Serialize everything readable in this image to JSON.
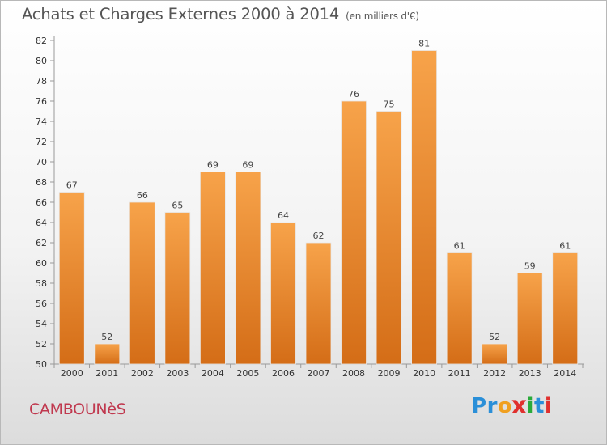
{
  "header": {
    "title": "Achats et Charges Externes 2000 à 2014",
    "unit": "(en milliers d'€)"
  },
  "footer": {
    "commune": "CAMBOUNèS",
    "logo_letters": [
      {
        "ch": "P",
        "color": "#2a8fd8"
      },
      {
        "ch": "r",
        "color": "#2a8fd8"
      },
      {
        "ch": "o",
        "color": "#f0a020"
      },
      {
        "ch": "x",
        "color": "#e0302e"
      },
      {
        "ch": "i",
        "color": "#2aaa3a"
      },
      {
        "ch": "t",
        "color": "#2a8fd8"
      },
      {
        "ch": "i",
        "color": "#e0302e"
      }
    ]
  },
  "chart_data": {
    "type": "bar",
    "title": "Achats et Charges Externes 2000 à 2014",
    "subtitle": "(en milliers d'€)",
    "xlabel": "",
    "ylabel": "",
    "categories": [
      "2000",
      "2001",
      "2002",
      "2003",
      "2004",
      "2005",
      "2006",
      "2007",
      "2008",
      "2009",
      "2010",
      "2011",
      "2012",
      "2013",
      "2014"
    ],
    "values": [
      67,
      52,
      66,
      65,
      69,
      69,
      64,
      62,
      76,
      75,
      81,
      61,
      52,
      59,
      61
    ],
    "ylim": [
      50,
      82
    ],
    "yticks": [
      50,
      52,
      54,
      56,
      58,
      60,
      62,
      64,
      66,
      68,
      70,
      72,
      74,
      76,
      78,
      80,
      82
    ],
    "grid": false,
    "legend": "none",
    "bar_color": "#f29a3f",
    "bar_color_dark": "#d9731a"
  }
}
